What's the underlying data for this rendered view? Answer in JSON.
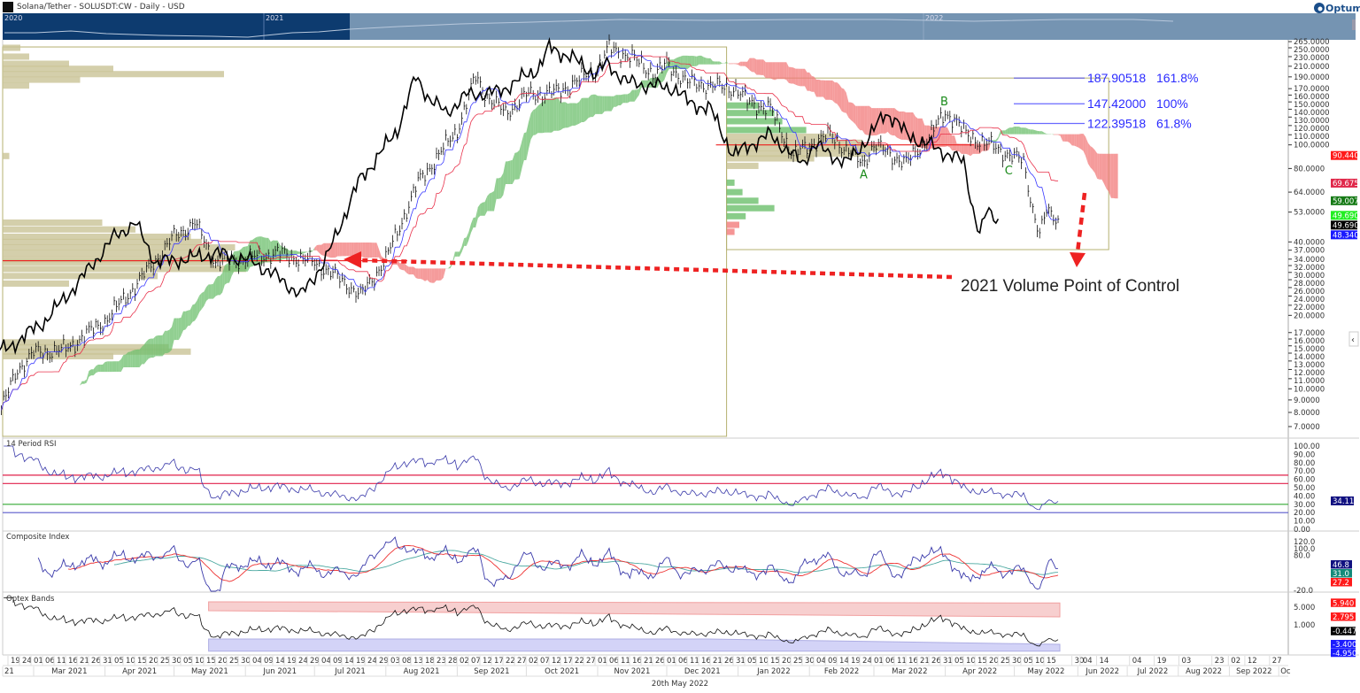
{
  "header": {
    "title": "Solana/Tether - SOLUSDT:CW - Daily - USD",
    "brand": "Optuma"
  },
  "navigator": {
    "years": [
      "2020",
      "2021",
      "2022"
    ]
  },
  "footer": {
    "date": "20th May 2022"
  },
  "colors": {
    "tenkan": "#3a3aff",
    "kijun": "#e8304a",
    "cloud_up": "#6cbf6c",
    "cloud_down": "#f27a7a",
    "profile": "#c9c396",
    "chikou": "#000000",
    "box": "#b5b070",
    "poc": "#ee2222",
    "fib": "#2a2aff"
  },
  "chart_data": {
    "type": "line",
    "title": "Solana/Tether - SOLUSDT:CW - Daily - USD",
    "scale": "log",
    "ylim": [
      7,
      265
    ],
    "y_ticks": [
      265,
      250,
      230,
      210,
      190,
      170,
      160,
      150,
      140,
      130,
      120,
      110,
      100,
      80,
      64,
      53,
      40,
      37,
      34,
      32,
      30,
      28,
      26,
      24,
      22,
      20,
      17,
      16,
      15,
      14,
      13,
      12,
      11,
      10,
      9,
      8,
      7
    ],
    "close_anchors": [
      [
        "2021-02-15",
        8.3
      ],
      [
        "2021-02-22",
        12
      ],
      [
        "2021-03-01",
        14
      ],
      [
        "2021-03-15",
        14.5
      ],
      [
        "2021-04-01",
        19
      ],
      [
        "2021-04-15",
        27
      ],
      [
        "2021-05-01",
        42
      ],
      [
        "2021-05-10",
        48
      ],
      [
        "2021-05-19",
        33
      ],
      [
        "2021-06-01",
        34
      ],
      [
        "2021-06-15",
        36
      ],
      [
        "2021-07-01",
        33
      ],
      [
        "2021-07-15",
        27
      ],
      [
        "2021-07-21",
        24
      ],
      [
        "2021-08-01",
        34
      ],
      [
        "2021-08-15",
        70
      ],
      [
        "2021-09-01",
        115
      ],
      [
        "2021-09-09",
        190
      ],
      [
        "2021-09-15",
        155
      ],
      [
        "2021-09-22",
        135
      ],
      [
        "2021-10-01",
        160
      ],
      [
        "2021-10-15",
        165
      ],
      [
        "2021-11-01",
        205
      ],
      [
        "2021-11-06",
        250
      ],
      [
        "2021-11-15",
        230
      ],
      [
        "2021-11-26",
        195
      ],
      [
        "2021-12-01",
        215
      ],
      [
        "2021-12-10",
        180
      ],
      [
        "2021-12-20",
        175
      ],
      [
        "2021-12-31",
        170
      ],
      [
        "2022-01-05",
        150
      ],
      [
        "2022-01-15",
        140
      ],
      [
        "2022-01-21",
        108
      ],
      [
        "2022-01-25",
        90
      ],
      [
        "2022-02-01",
        100
      ],
      [
        "2022-02-10",
        110
      ],
      [
        "2022-02-20",
        90
      ],
      [
        "2022-02-24",
        84
      ],
      [
        "2022-03-01",
        100
      ],
      [
        "2022-03-15",
        84
      ],
      [
        "2022-03-25",
        108
      ],
      [
        "2022-04-01",
        135
      ],
      [
        "2022-04-05",
        128
      ],
      [
        "2022-04-10",
        110
      ],
      [
        "2022-04-20",
        100
      ],
      [
        "2022-04-30",
        90
      ],
      [
        "2022-05-05",
        85
      ],
      [
        "2022-05-09",
        55
      ],
      [
        "2022-05-12",
        43
      ],
      [
        "2022-05-15",
        53
      ],
      [
        "2022-05-20",
        49.69
      ]
    ],
    "price_tags": [
      {
        "value": "90.4400",
        "price": 90.44,
        "color": "#ff1a1a"
      },
      {
        "value": "69.6750",
        "price": 69.675,
        "color": "#e0284a"
      },
      {
        "value": "59.0075",
        "price": 59.0075,
        "color": "#167a16"
      },
      {
        "value": "49.6900",
        "price": 51.4,
        "color": "#22ee22",
        "text": "#000"
      },
      {
        "value": "49.6900",
        "price": 49.69,
        "color": "#000000"
      },
      {
        "value": "48.3400",
        "price": 48.34,
        "color": "#1a1aff"
      }
    ],
    "volume_profile_2021": [
      [
        250,
        0.08
      ],
      [
        230,
        0.12
      ],
      [
        215,
        0.3
      ],
      [
        205,
        0.5
      ],
      [
        195,
        1.0
      ],
      [
        185,
        0.35
      ],
      [
        175,
        0.12
      ],
      [
        90,
        0.03
      ],
      [
        48,
        0.45
      ],
      [
        45,
        0.6
      ],
      [
        42,
        0.85
      ],
      [
        40,
        0.9
      ],
      [
        38,
        1.05
      ],
      [
        36,
        1.0
      ],
      [
        34,
        1.2
      ],
      [
        33,
        0.95
      ],
      [
        31,
        1.1
      ],
      [
        29,
        0.7
      ],
      [
        27,
        0.3
      ],
      [
        15.5,
        0.35
      ],
      [
        14.8,
        0.75
      ],
      [
        14.2,
        0.85
      ],
      [
        13.6,
        0.5
      ]
    ],
    "volume_profile_2022": [
      [
        145,
        0.2
      ],
      [
        135,
        0.3
      ],
      [
        125,
        0.35
      ],
      [
        115,
        0.5
      ],
      [
        108,
        0.7
      ],
      [
        102,
        0.85
      ],
      [
        97,
        1.0
      ],
      [
        92,
        0.9
      ],
      [
        88,
        0.55
      ],
      [
        82,
        0.2
      ],
      [
        70,
        0.05
      ],
      [
        64,
        0.1
      ],
      [
        59,
        0.2
      ],
      [
        55,
        0.3
      ],
      [
        51,
        0.12
      ],
      [
        47,
        0.08
      ],
      [
        44,
        0.05
      ]
    ],
    "poc_2021": 33.5,
    "poc_2022": 100,
    "box_range": {
      "start": "2021-12-27",
      "end": "2022-06-11",
      "high": 187.9,
      "low": 37.2
    },
    "fib_levels": [
      {
        "price_label": "187.90518",
        "pct": "161.8%",
        "price": 187.90518
      },
      {
        "price_label": "147.42000",
        "pct": "100%",
        "price": 147.42
      },
      {
        "price_label": "122.39518",
        "pct": "61.8%",
        "price": 122.39518
      }
    ],
    "wave_labels": [
      {
        "label": "A",
        "date": "2022-02-24",
        "price": 82
      },
      {
        "label": "B",
        "date": "2022-03-31",
        "price": 143
      },
      {
        "label": "C",
        "date": "2022-04-28",
        "price": 85
      }
    ],
    "annotation": "2021 Volume Point of Control",
    "x_ticks_history": [
      "19",
      "24",
      "01",
      "06",
      "11",
      "16",
      "21",
      "26",
      "31",
      "05",
      "10",
      "15",
      "20",
      "25",
      "30",
      "05",
      "10",
      "15",
      "20",
      "25",
      "30",
      "04",
      "09",
      "14",
      "19",
      "24",
      "29",
      "04",
      "09",
      "14",
      "19",
      "24",
      "29",
      "03",
      "08",
      "13",
      "18",
      "23",
      "28",
      "02",
      "07",
      "12",
      "17",
      "22",
      "27",
      "02",
      "07",
      "12",
      "17",
      "22",
      "27",
      "01",
      "06",
      "11",
      "16",
      "21",
      "26",
      "01",
      "06",
      "11",
      "16",
      "21",
      "26",
      "31",
      "05",
      "10",
      "15",
      "20",
      "25",
      "30",
      "04",
      "09",
      "14",
      "19",
      "24",
      "01",
      "06",
      "11",
      "16",
      "21",
      "26",
      "31",
      "05",
      "10",
      "15",
      "20",
      "25",
      "30",
      "05",
      "10",
      "15"
    ],
    "x_ticks_future": [
      [
        "30",
        "2022-05-30"
      ],
      [
        "04",
        "2022-06-04"
      ],
      [
        "14",
        "2022-06-14"
      ],
      [
        "04",
        "2022-07-04"
      ],
      [
        "19",
        "2022-07-19"
      ],
      [
        "03",
        "2022-08-03"
      ],
      [
        "23",
        "2022-08-23"
      ],
      [
        "02",
        "2022-09-02"
      ],
      [
        "12",
        "2022-09-12"
      ],
      [
        "27",
        "2022-09-27"
      ]
    ],
    "months": [
      [
        "21",
        "2021-02-01"
      ],
      [
        "Mar 2021",
        "2021-03-01"
      ],
      [
        "Apr 2021",
        "2021-04-01"
      ],
      [
        "May 2021",
        "2021-05-01"
      ],
      [
        "Jun 2021",
        "2021-06-01"
      ],
      [
        "Jul 2021",
        "2021-07-01"
      ],
      [
        "Aug 2021",
        "2021-08-01"
      ],
      [
        "Sep 2021",
        "2021-09-01"
      ],
      [
        "Oct 2021",
        "2021-10-01"
      ],
      [
        "Nov 2021",
        "2021-11-01"
      ],
      [
        "Dec 2021",
        "2021-12-01"
      ],
      [
        "Jan 2022",
        "2022-01-01"
      ],
      [
        "Feb 2022",
        "2022-02-01"
      ],
      [
        "Mar 2022",
        "2022-03-01"
      ],
      [
        "Apr 2022",
        "2022-04-01"
      ],
      [
        "May 2022",
        "2022-05-01"
      ],
      [
        "Jun 2022",
        "2022-06-01"
      ],
      [
        "Jul 2022",
        "2022-07-01"
      ],
      [
        "Aug 2022",
        "2022-08-01"
      ],
      [
        "Sep 2022",
        "2022-09-01"
      ],
      [
        "Oc",
        "2022-10-01"
      ]
    ],
    "rsi": {
      "title": "14 Period RSI",
      "ticks": [
        "100.00",
        "90.00",
        "80.00",
        "70.00",
        "60.00",
        "50.00",
        "40.00",
        "30.00",
        "20.00",
        "10.00",
        "0.00"
      ],
      "levels": [
        65,
        55,
        30,
        20
      ],
      "last": "34.11"
    },
    "composite": {
      "title": "Composite Index",
      "ticks": [
        "120.0",
        "100.0",
        "80.0",
        "-20.0"
      ],
      "tags": [
        {
          "value": "46.8",
          "color": "#101080"
        },
        {
          "value": "31.0",
          "color": "#138a7a"
        },
        {
          "value": "27.2",
          "color": "#ff1a1a"
        }
      ]
    },
    "optex": {
      "title": "Optex Bands",
      "ticks": [
        "5.000",
        "1.000"
      ],
      "tags": [
        {
          "value": "5.940",
          "color": "#ff1a1a"
        },
        {
          "value": "2.795",
          "color": "#ff1a1a"
        },
        {
          "value": "-0.447",
          "color": "#000"
        },
        {
          "value": "-3.400",
          "color": "#1a1aff"
        },
        {
          "value": "-4.950",
          "color": "#1a1aff"
        }
      ]
    }
  }
}
